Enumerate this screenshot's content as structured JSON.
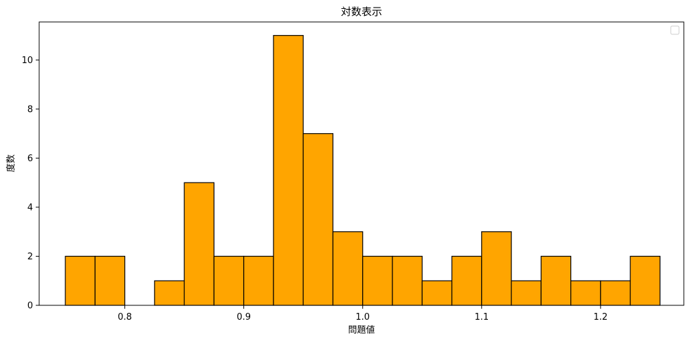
{
  "chart_data": {
    "type": "bar",
    "title": "対数表示",
    "xlabel": "問題値",
    "ylabel": "度数",
    "bin_edges": [
      0.75,
      0.775,
      0.8,
      0.825,
      0.85,
      0.875,
      0.9,
      0.925,
      0.95,
      0.975,
      1.0,
      1.025,
      1.05,
      1.075,
      1.1,
      1.125,
      1.15,
      1.175,
      1.2,
      1.225,
      1.25
    ],
    "values": [
      2,
      2,
      0,
      1,
      5,
      2,
      2,
      11,
      7,
      3,
      2,
      2,
      1,
      2,
      3,
      1,
      2,
      1,
      1,
      2
    ],
    "xlim": [
      0.728,
      1.27
    ],
    "ylim": [
      0,
      11.55
    ],
    "xticks": [
      "0.8",
      "0.9",
      "1.0",
      "1.1",
      "1.2"
    ],
    "yticks": [
      "0",
      "2",
      "4",
      "6",
      "8",
      "10"
    ],
    "bar_color": "#FFA500",
    "edge_color": "#000000",
    "grid": false,
    "legend": {
      "position": "top-right",
      "entries": []
    }
  }
}
